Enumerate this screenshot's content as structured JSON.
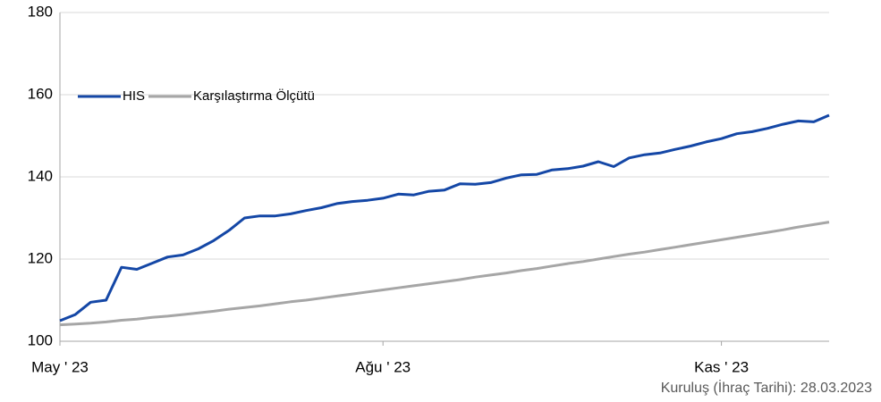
{
  "chart_data": {
    "type": "line",
    "categories": [
      "May ' 23",
      null,
      null,
      null,
      null,
      null,
      null,
      null,
      null,
      null,
      null,
      null,
      null,
      null,
      null,
      null,
      null,
      null,
      null,
      null,
      null,
      "Ağu ' 23",
      null,
      null,
      null,
      null,
      null,
      null,
      null,
      null,
      null,
      null,
      null,
      null,
      null,
      null,
      null,
      null,
      null,
      null,
      null,
      null,
      null,
      "Kas ' 23",
      null,
      null,
      null,
      null,
      null,
      null,
      null
    ],
    "series": [
      {
        "name": "HIS",
        "color": "#1447a6",
        "values": [
          105,
          106.5,
          109.5,
          110,
          118,
          117.5,
          119,
          120.5,
          121,
          122.5,
          124.5,
          127,
          130,
          130.5,
          130.5,
          131,
          131.8,
          132.5,
          133.5,
          134,
          134.3,
          134.8,
          135.8,
          135.6,
          136.5,
          136.8,
          138.3,
          138.2,
          138.6,
          139.7,
          140.5,
          140.6,
          141.7,
          142,
          142.6,
          143.7,
          142.5,
          144.6,
          145.4,
          145.8,
          146.7,
          147.5,
          148.5,
          149.3,
          150.5,
          151,
          151.8,
          152.8,
          153.6,
          153.4,
          155
        ]
      },
      {
        "name": "Karşılaştırma Ölçütü",
        "color": "#a6a6a6",
        "values": [
          104,
          104.2,
          104.4,
          104.7,
          105.1,
          105.4,
          105.8,
          106.1,
          106.5,
          106.9,
          107.3,
          107.8,
          108.2,
          108.6,
          109.1,
          109.6,
          110.0,
          110.5,
          111.0,
          111.5,
          112.0,
          112.5,
          113.0,
          113.5,
          114.0,
          114.5,
          115.0,
          115.6,
          116.1,
          116.6,
          117.2,
          117.7,
          118.3,
          118.9,
          119.4,
          120.0,
          120.6,
          121.2,
          121.7,
          122.3,
          122.9,
          123.5,
          124.1,
          124.7,
          125.3,
          125.9,
          126.5,
          127.1,
          127.8,
          128.4,
          129
        ]
      }
    ],
    "ylim": [
      100,
      180
    ],
    "yticks": [
      100,
      120,
      140,
      160,
      180
    ],
    "grid": true,
    "legend": "upper left",
    "annotation": "Kuruluş (İhraç Tarihi): 28.03.2023"
  }
}
